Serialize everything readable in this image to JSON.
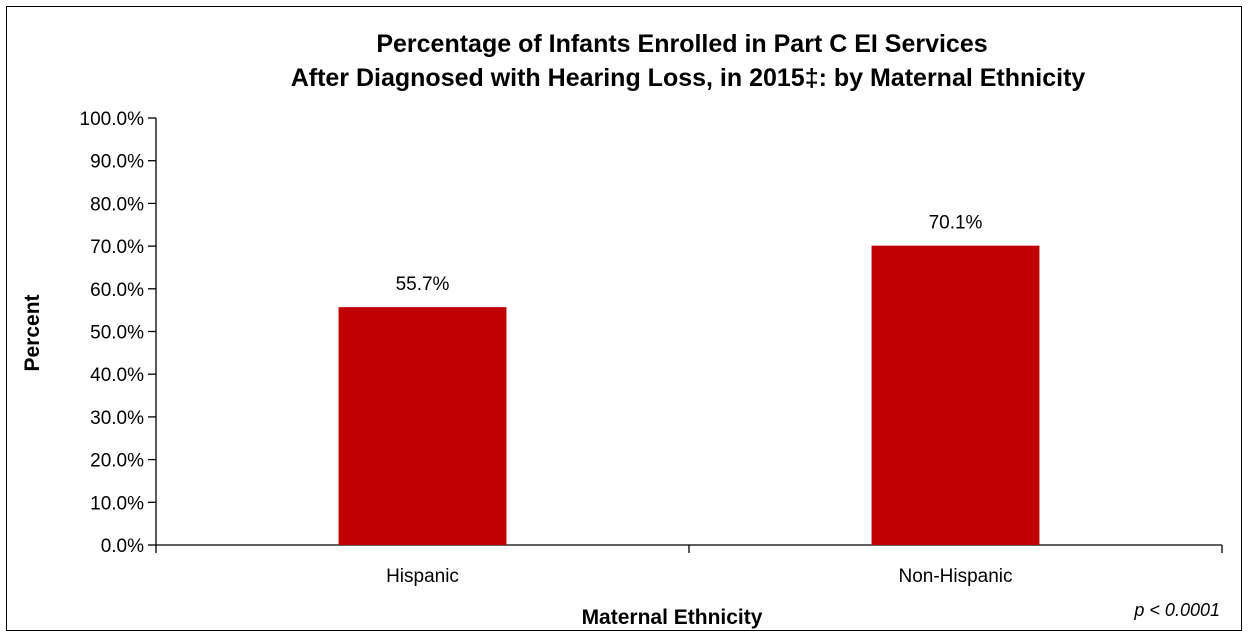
{
  "chart_data": {
    "type": "bar",
    "title_lines": [
      "Percentage of Infants Enrolled in Part C EI Services",
      "After Diagnosed with Hearing Loss, in 2015‡: by Maternal Ethnicity"
    ],
    "categories": [
      "Hispanic",
      "Non-Hispanic"
    ],
    "values": [
      55.7,
      70.1
    ],
    "value_labels": [
      "55.7%",
      "70.1%"
    ],
    "xlabel": "Maternal Ethnicity",
    "ylabel": "Percent",
    "ylim": [
      0,
      100
    ],
    "yticks": [
      0,
      10,
      20,
      30,
      40,
      50,
      60,
      70,
      80,
      90,
      100
    ],
    "ytick_labels": [
      "0.0%",
      "10.0%",
      "20.0%",
      "30.0%",
      "40.0%",
      "50.0%",
      "60.0%",
      "70.0%",
      "80.0%",
      "90.0%",
      "100.0%"
    ],
    "grid": false,
    "legend": "none",
    "bar_color": "#C00000",
    "annotation": "p < 0.0001"
  }
}
